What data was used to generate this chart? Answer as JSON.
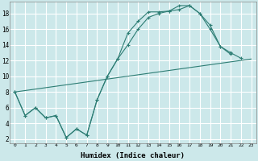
{
  "xlabel": "Humidex (Indice chaleur)",
  "bg_color": "#cce8ea",
  "grid_color": "#ffffff",
  "line_color": "#2d7d74",
  "xlim": [
    -0.5,
    23.5
  ],
  "ylim": [
    1.5,
    19.5
  ],
  "xticks": [
    0,
    1,
    2,
    3,
    4,
    5,
    6,
    7,
    8,
    9,
    10,
    11,
    12,
    13,
    14,
    15,
    16,
    17,
    18,
    19,
    20,
    21,
    22,
    23
  ],
  "yticks": [
    2,
    4,
    6,
    8,
    10,
    12,
    14,
    16,
    18
  ],
  "line1_x": [
    0,
    1,
    2,
    3,
    4,
    5,
    6,
    7,
    8,
    9,
    10,
    11,
    12,
    13,
    14,
    15,
    16,
    17,
    18,
    19,
    20,
    21
  ],
  "line1_y": [
    8,
    5,
    6,
    4.7,
    5,
    2.2,
    3.3,
    2.5,
    7,
    10,
    12.2,
    15.5,
    17,
    18.2,
    18.2,
    18.3,
    19,
    19,
    18,
    16.5,
    13.8,
    12.8
  ],
  "line2_x": [
    0,
    1,
    2,
    3,
    4,
    5,
    6,
    7,
    8,
    9,
    10,
    11,
    12,
    13,
    14,
    15,
    16,
    17,
    18,
    19,
    20,
    21,
    22,
    23
  ],
  "line2_y": [
    8,
    5,
    6,
    4.7,
    5,
    2.2,
    3.3,
    2.5,
    7,
    10,
    12.2,
    14,
    16,
    17.5,
    18,
    18.3,
    18.5,
    19,
    18,
    16,
    13.8,
    13,
    12.3,
    null
  ],
  "line3_x": [
    0,
    23
  ],
  "line3_y": [
    8,
    12.2
  ]
}
